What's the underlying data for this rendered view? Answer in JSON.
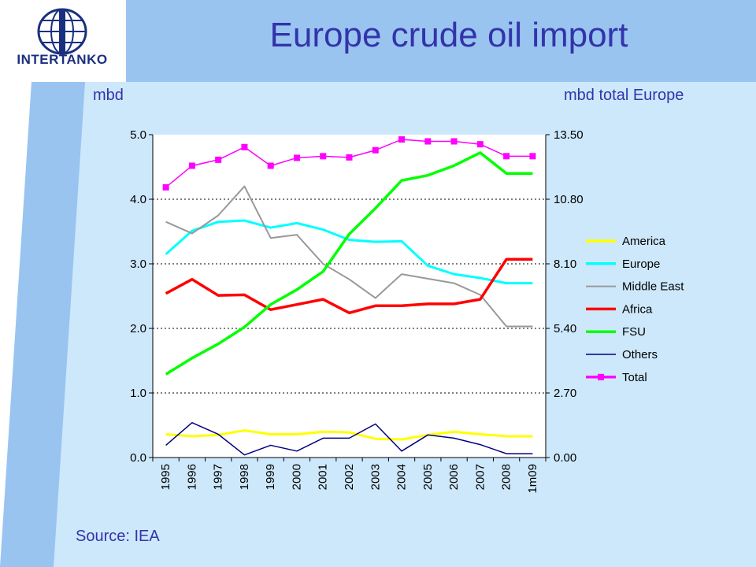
{
  "slide": {
    "title": "Europe crude oil import",
    "left_axis_unit": "mbd",
    "right_axis_unit": "mbd total Europe",
    "source": "Source: IEA",
    "logo_text": "INTERTANKO",
    "colors": {
      "title": "#3333aa",
      "band_dark": "#99c4f0",
      "band_light": "#cde8fb"
    }
  },
  "chart_data": {
    "type": "line",
    "title": "Europe crude oil import",
    "xlabel": "",
    "ylabel": "mbd",
    "y2label": "mbd total Europe",
    "categories": [
      "1995",
      "1996",
      "1997",
      "1998",
      "1999",
      "2000",
      "2001",
      "2002",
      "2003",
      "2004",
      "2005",
      "2006",
      "2007",
      "2008",
      "1m09"
    ],
    "ylim": [
      0,
      5
    ],
    "yticks": [
      "0.0",
      "1.0",
      "2.0",
      "3.0",
      "4.0",
      "5.0"
    ],
    "y2lim": [
      0,
      13.5
    ],
    "y2ticks": [
      "0.00",
      "2.70",
      "5.40",
      "8.10",
      "10.80",
      "13.50"
    ],
    "grid": "horizontal dotted",
    "legend_position": "right",
    "series": [
      {
        "name": "America",
        "color": "#ffff00",
        "axis": "left",
        "values": [
          0.36,
          0.33,
          0.35,
          0.42,
          0.36,
          0.36,
          0.4,
          0.39,
          0.29,
          0.28,
          0.35,
          0.4,
          0.36,
          0.33,
          0.33
        ]
      },
      {
        "name": "Europe",
        "color": "#00ffff",
        "axis": "left",
        "values": [
          3.15,
          3.51,
          3.65,
          3.67,
          3.56,
          3.63,
          3.53,
          3.37,
          3.34,
          3.35,
          2.97,
          2.84,
          2.78,
          2.7,
          2.7
        ]
      },
      {
        "name": "Middle East",
        "color": "#999999",
        "axis": "left",
        "values": [
          3.65,
          3.47,
          3.75,
          4.2,
          3.4,
          3.45,
          3.0,
          2.76,
          2.47,
          2.84,
          2.77,
          2.7,
          2.52,
          2.03,
          2.03
        ]
      },
      {
        "name": "Africa",
        "color": "#ff0000",
        "axis": "left",
        "values": [
          2.54,
          2.76,
          2.51,
          2.52,
          2.29,
          2.37,
          2.45,
          2.24,
          2.35,
          2.35,
          2.38,
          2.38,
          2.45,
          3.07,
          3.07
        ]
      },
      {
        "name": "FSU",
        "color": "#00ff00",
        "axis": "left",
        "values": [
          1.29,
          1.54,
          1.76,
          2.02,
          2.37,
          2.6,
          2.88,
          3.46,
          3.86,
          4.29,
          4.37,
          4.52,
          4.72,
          4.4,
          4.4
        ]
      },
      {
        "name": "Others",
        "color": "#000080",
        "axis": "left",
        "values": [
          0.19,
          0.54,
          0.36,
          0.04,
          0.19,
          0.1,
          0.3,
          0.3,
          0.52,
          0.1,
          0.35,
          0.3,
          0.2,
          0.06,
          0.06
        ]
      },
      {
        "name": "Total",
        "color": "#ff00ff",
        "axis": "right",
        "marker": "square",
        "values": [
          11.3,
          12.2,
          12.45,
          12.98,
          12.2,
          12.53,
          12.6,
          12.55,
          12.85,
          13.3,
          13.22,
          13.22,
          13.1,
          12.6,
          12.6
        ]
      }
    ]
  }
}
